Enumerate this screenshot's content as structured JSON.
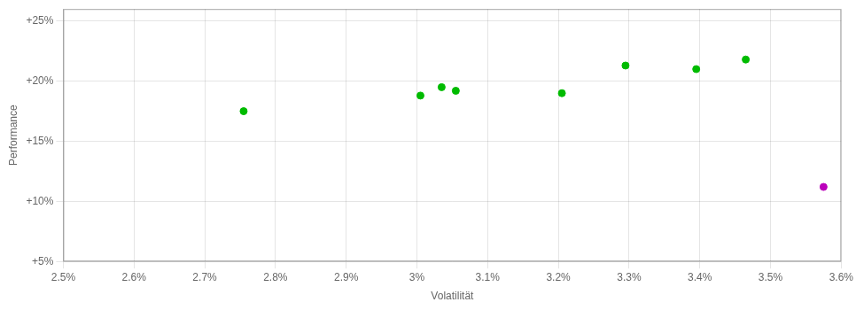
{
  "chart_data": {
    "type": "scatter",
    "xlabel": "Volatilität",
    "ylabel": "Performance",
    "x": [
      0.02755,
      0.03005,
      0.03035,
      0.03055,
      0.03205,
      0.03295,
      0.03395,
      0.03465,
      0.03575
    ],
    "values": [
      0.175,
      0.188,
      0.195,
      0.192,
      0.19,
      0.213,
      0.21,
      0.218,
      0.112
    ],
    "colors": [
      "#00bb00",
      "#00bb00",
      "#00bb00",
      "#00bb00",
      "#00bb00",
      "#00bb00",
      "#00bb00",
      "#00bb00",
      "#bb00bb"
    ],
    "xlim": [
      0.025,
      0.036
    ],
    "ylim": [
      0.05,
      0.26
    ],
    "xticks": [
      {
        "value": 0.025,
        "label": "2.5%"
      },
      {
        "value": 0.026,
        "label": "2.6%"
      },
      {
        "value": 0.027,
        "label": "2.7%"
      },
      {
        "value": 0.028,
        "label": "2.8%"
      },
      {
        "value": 0.029,
        "label": "2.9%"
      },
      {
        "value": 0.03,
        "label": "3%"
      },
      {
        "value": 0.031,
        "label": "3.1%"
      },
      {
        "value": 0.032,
        "label": "3.2%"
      },
      {
        "value": 0.033,
        "label": "3.3%"
      },
      {
        "value": 0.034,
        "label": "3.4%"
      },
      {
        "value": 0.035,
        "label": "3.5%"
      },
      {
        "value": 0.036,
        "label": "3.6%"
      }
    ],
    "yticks": [
      {
        "value": 0.05,
        "label": "+5%"
      },
      {
        "value": 0.1,
        "label": "+10%"
      },
      {
        "value": 0.15,
        "label": "+15%"
      },
      {
        "value": 0.2,
        "label": "+20%"
      },
      {
        "value": 0.25,
        "label": "+25%"
      }
    ],
    "grid": true
  }
}
